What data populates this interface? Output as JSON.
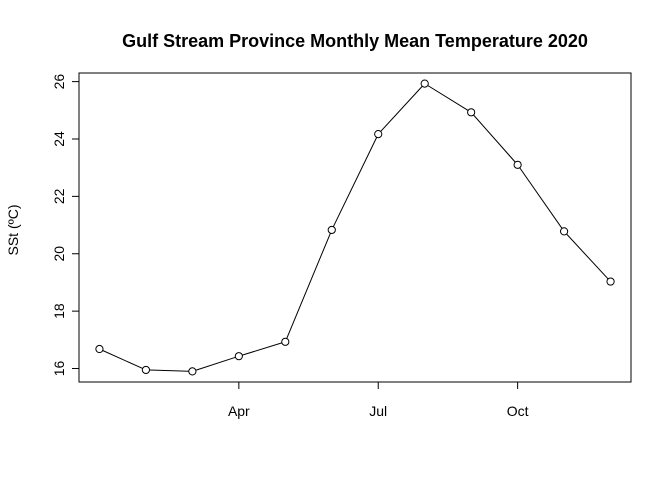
{
  "chart_data": {
    "type": "line",
    "title": "Gulf Stream Province Monthly Mean Temperature 2020",
    "xlabel": "",
    "ylabel": "SSt (ºC)",
    "x": [
      1,
      2,
      3,
      4,
      5,
      6,
      7,
      8,
      9,
      10,
      11,
      12
    ],
    "series": [
      {
        "values": [
          16.68,
          15.95,
          15.9,
          16.43,
          16.93,
          20.83,
          24.17,
          25.93,
          24.93,
          23.1,
          20.78,
          19.03
        ],
        "marker": "open-circle",
        "line": true
      }
    ],
    "x_ticks": [
      {
        "value": 4,
        "label": "Apr"
      },
      {
        "value": 7,
        "label": "Jul"
      },
      {
        "value": 10,
        "label": "Oct"
      }
    ],
    "y_ticks": [
      16,
      18,
      20,
      22,
      24,
      26
    ],
    "xlim": [
      0.56,
      12.44
    ],
    "ylim": [
      15.53,
      26.3
    ],
    "grid": false,
    "legend": "none",
    "colors": {
      "line": "#000000",
      "marker_fill": "#ffffff",
      "frame": "#000000"
    }
  }
}
